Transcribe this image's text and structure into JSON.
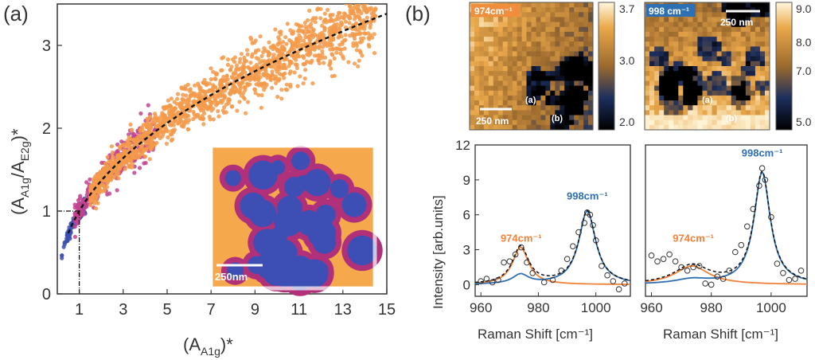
{
  "colors": {
    "orange": "#f39a4a",
    "orange_dark": "#f0823a",
    "magenta": "#c2438f",
    "blue": "#3a4fb0",
    "fit_blue": "#2f6fb3",
    "inset_orange": "#f5a94c",
    "inset_magenta": "#b0307a",
    "inset_blue": "#3d4fb4"
  },
  "panel_a": {
    "label": "(a)",
    "inset_scalebar": "250nm",
    "legend_marker_value": "1"
  },
  "panel_b": {
    "label": "(b)",
    "map_left": {
      "title": "974cm⁻¹",
      "scalebar": "250 nm",
      "point_a": "(a)",
      "point_b": "(b)",
      "colorbar_ticks": [
        "3.7",
        "3.0",
        "2.0"
      ],
      "colorbar_range": [
        2.0,
        3.7
      ]
    },
    "map_right": {
      "title": "998 cm⁻¹",
      "scalebar": "250 nm",
      "point_a": "(a)",
      "point_b": "(b)",
      "colorbar_ticks": [
        "9.0",
        "8.0",
        "7.0",
        "5.0"
      ],
      "colorbar_range": [
        5.0,
        9.0
      ]
    }
  },
  "chart_data": [
    {
      "type": "scatter",
      "title": "",
      "xlabel_main": "(A",
      "xlabel_sub": "A1g",
      "xlabel_end": ")*",
      "ylabel_main": "(A",
      "ylabel_sub1": "A1g",
      "ylabel_mid": "/A",
      "ylabel_sub2": "E2g",
      "ylabel_end": ")*",
      "xlim": [
        0,
        15
      ],
      "ylim": [
        0,
        3.5
      ],
      "x_ticks": [
        "1",
        "3",
        "5",
        "7",
        "9",
        "11",
        "13",
        "15"
      ],
      "x_tick_values": [
        1,
        3,
        5,
        7,
        9,
        11,
        13,
        15
      ],
      "y_ticks": [
        "0",
        "1",
        "2",
        "3"
      ],
      "y_tick_values": [
        0,
        1,
        2,
        3
      ],
      "fit": {
        "form": "y = x^0.45",
        "style": "dashed",
        "color": "#000000"
      },
      "reference_point": {
        "x": 1,
        "y": 1
      },
      "series": [
        {
          "name": "blue cluster",
          "color": "#3a4fb0",
          "x_range": [
            0.2,
            1.3
          ],
          "trend": "y ~ x^0.45"
        },
        {
          "name": "magenta cluster",
          "color": "#c2438f",
          "x_range": [
            0.8,
            4.5
          ],
          "trend": "y ~ x^0.45"
        },
        {
          "name": "orange cluster",
          "color": "#f39a4a",
          "x_range": [
            1.5,
            14.5
          ],
          "trend": "y ~ x^0.45"
        }
      ]
    },
    {
      "type": "line",
      "title": "",
      "xlabel": "Raman Shift [cm⁻¹]",
      "ylabel": "Intensity [arb.units]",
      "xlim": [
        958,
        1012
      ],
      "ylim": [
        -1,
        12
      ],
      "x_ticks": [
        "960",
        "980",
        "1000"
      ],
      "x_tick_values": [
        960,
        980,
        1000
      ],
      "y_ticks": [
        "0",
        "3",
        "6",
        "9",
        "12"
      ],
      "y_tick_values": [
        0,
        3,
        6,
        9,
        12
      ],
      "peak_labels": [
        {
          "text": "974cm⁻¹",
          "color": "orange",
          "x": 974,
          "y": 3.7
        },
        {
          "text": "998cm⁻¹",
          "color": "blue",
          "x": 997,
          "y": 7.3
        }
      ],
      "series": [
        {
          "name": "974 peak fit",
          "color": "#f0823a",
          "center": 973.8,
          "amp": 3.2,
          "width": 3.4
        },
        {
          "name": "998 peak fit",
          "color": "#2f6fb3",
          "center": 997.0,
          "amp": 6.3,
          "width": 3.6
        }
      ],
      "data_points": {
        "x": [
          960,
          962,
          964,
          966,
          968,
          970,
          972,
          974,
          976,
          978,
          982,
          985,
          988,
          990,
          992,
          994,
          996,
          997,
          998,
          999,
          1000,
          1002,
          1004,
          1006,
          1008,
          1010
        ],
        "y": [
          0.3,
          0.5,
          0.2,
          0.4,
          1.9,
          2.0,
          2.6,
          3.2,
          1.9,
          1.0,
          0.2,
          0.4,
          1.2,
          2.2,
          3.3,
          4.5,
          5.3,
          6.2,
          6.0,
          5.1,
          3.8,
          1.6,
          0.8,
          0.3,
          -0.4,
          0.1
        ]
      }
    },
    {
      "type": "line",
      "title": "",
      "xlabel": "Raman Shift [cm⁻¹]",
      "ylabel": "",
      "xlim": [
        958,
        1012
      ],
      "ylim": [
        -1,
        12
      ],
      "x_ticks": [
        "960",
        "980",
        "1000"
      ],
      "x_tick_values": [
        960,
        980,
        1000
      ],
      "y_ticks": [],
      "peak_labels": [
        {
          "text": "974cm⁻¹",
          "color": "orange",
          "x": 974,
          "y": 3.7
        },
        {
          "text": "998cm⁻¹",
          "color": "blue",
          "x": 997,
          "y": 11.0
        }
      ],
      "series": [
        {
          "name": "974 peak fit",
          "color": "#f0823a",
          "center": 973.5,
          "amp": 1.6,
          "width": 7.0
        },
        {
          "name": "998 peak fit",
          "color": "#2f6fb3",
          "center": 997.0,
          "amp": 9.6,
          "width": 3.3
        }
      ],
      "data_points": {
        "x": [
          960,
          962,
          964,
          966,
          968,
          970,
          972,
          974,
          976,
          978,
          980,
          982,
          984,
          986,
          988,
          990,
          992,
          994,
          996,
          997,
          998,
          1000,
          1002,
          1004,
          1006,
          1008,
          1010
        ],
        "y": [
          2.5,
          2.0,
          2.2,
          2.6,
          2.0,
          1.5,
          1.2,
          1.5,
          1.6,
          0.1,
          0.0,
          0.7,
          0.5,
          1.2,
          2.8,
          3.4,
          5.0,
          6.5,
          8.5,
          10.0,
          9.0,
          5.8,
          1.8,
          1.0,
          0.4,
          0.5,
          1.2
        ]
      }
    }
  ]
}
